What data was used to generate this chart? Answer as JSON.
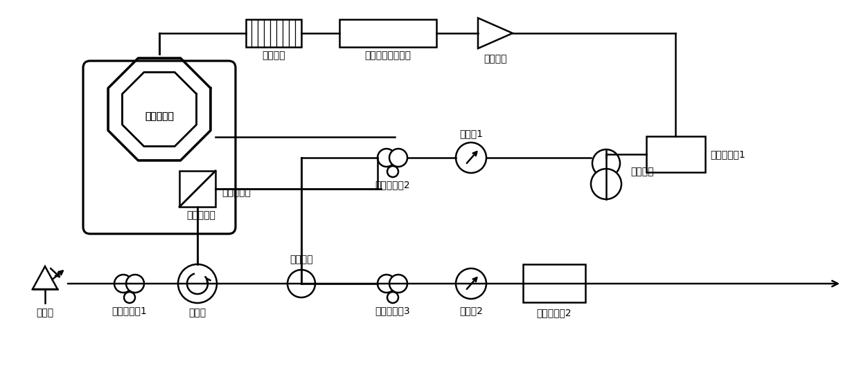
{
  "bg_color": "#ffffff",
  "line_color": "#000000",
  "line_width": 1.8,
  "font_size": 10,
  "font_family": "SimHei",
  "labels": {
    "laser": "激光源",
    "pc1": "偏振控制器1",
    "circulator": "环形器",
    "coupler": "光耦合器",
    "pc2": "偏振控制器2",
    "pc3": "偏振控制器3",
    "pol1": "起偏器1",
    "pol2": "起偏器2",
    "pbs": "偏振分束器",
    "phase_mod": "相位调制器",
    "phase_shift": "电移相器",
    "filter": "可调谐带通滤波器",
    "amp": "电放大器",
    "pd1": "光电探测器1",
    "pd2": "光电探测器2",
    "smf": "单模光纤"
  }
}
